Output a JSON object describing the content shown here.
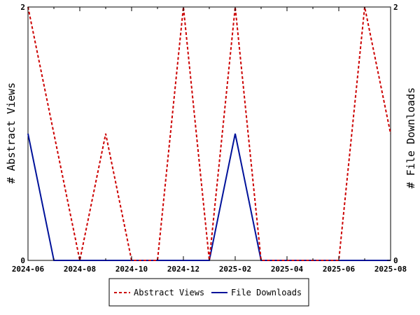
{
  "chart_data": {
    "type": "line",
    "xlabel": "",
    "ylabel_left": "# Abstract Views",
    "ylabel_right": "# File Downloads",
    "x_ticks": [
      "2024-06",
      "2024-08",
      "2024-10",
      "2024-12",
      "2025-02",
      "2025-04",
      "2025-06",
      "2025-08"
    ],
    "y_left": {
      "min": 0,
      "max": 2,
      "ticks": [
        "0",
        "2"
      ]
    },
    "y_right": {
      "min": 0,
      "max": 2,
      "ticks": [
        "0",
        "2"
      ]
    },
    "x": [
      "2024-06",
      "2024-07",
      "2024-08",
      "2024-09",
      "2024-10",
      "2024-11",
      "2024-12",
      "2025-01",
      "2025-02",
      "2025-03",
      "2025-04",
      "2025-05",
      "2025-06",
      "2025-07",
      "2025-08"
    ],
    "grid": false,
    "legend_position": "bottom",
    "series": [
      {
        "name": "Abstract Views",
        "axis": "left",
        "color": "#cc0000",
        "style": "dashed",
        "values": [
          2,
          1,
          0,
          1,
          0,
          0,
          2,
          0,
          2,
          0,
          0,
          0,
          0,
          2,
          1
        ]
      },
      {
        "name": "File Downloads",
        "axis": "right",
        "color": "#00129a",
        "style": "solid",
        "values": [
          1,
          0,
          0,
          0,
          0,
          0,
          0,
          0,
          1,
          0,
          0,
          0,
          0,
          0,
          0
        ]
      }
    ]
  }
}
